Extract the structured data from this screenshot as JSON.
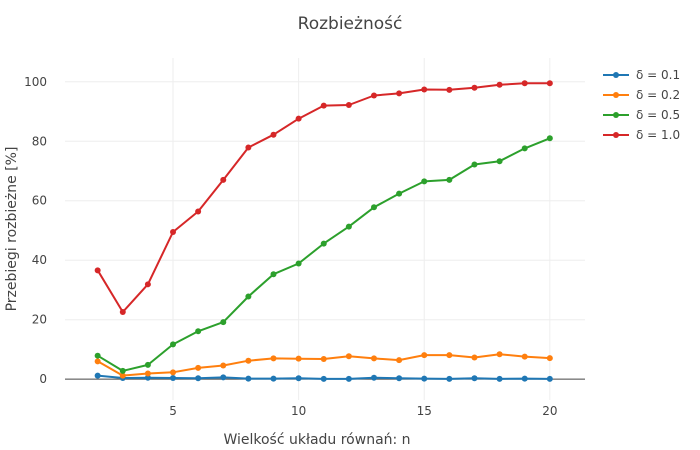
{
  "chart_data": {
    "type": "line",
    "title": "Rozbieżność",
    "xlabel": "Wielkość układu równań: n",
    "ylabel": "Przebiegi rozbieżne [%]",
    "xlim": [
      0.7,
      21.4
    ],
    "ylim": [
      -7,
      108
    ],
    "x_ticks": [
      5,
      10,
      15,
      20
    ],
    "y_ticks": [
      0,
      20,
      40,
      60,
      80,
      100
    ],
    "grid": true,
    "legend_position": "top-right",
    "x": [
      2,
      3,
      4,
      5,
      6,
      7,
      8,
      9,
      10,
      11,
      12,
      13,
      14,
      15,
      16,
      17,
      18,
      19,
      20
    ],
    "series": [
      {
        "name": "δ = 0.1",
        "color": "#1f77b4",
        "values": [
          1.2,
          0.4,
          0.5,
          0.4,
          0.3,
          0.6,
          0.2,
          0.2,
          0.3,
          0.1,
          0.1,
          0.5,
          0.3,
          0.2,
          0.1,
          0.3,
          0.1,
          0.2,
          0.1
        ]
      },
      {
        "name": "δ = 0.2",
        "color": "#ff7f0e",
        "values": [
          6.0,
          1.2,
          1.9,
          2.3,
          3.8,
          4.6,
          6.2,
          7.0,
          6.9,
          6.8,
          7.7,
          7.0,
          6.4,
          8.1,
          8.1,
          7.3,
          8.4,
          7.6,
          7.1
        ]
      },
      {
        "name": "δ = 0.5",
        "color": "#2ca02c",
        "values": [
          7.9,
          2.8,
          4.8,
          11.7,
          16.1,
          19.2,
          27.8,
          35.3,
          38.9,
          45.6,
          51.3,
          57.8,
          62.4,
          66.5,
          67.0,
          72.2,
          73.3,
          77.6,
          81.0
        ]
      },
      {
        "name": "δ = 1.0",
        "color": "#d62728",
        "values": [
          36.6,
          22.6,
          31.9,
          49.5,
          56.4,
          67.0,
          77.9,
          82.2,
          87.6,
          92.0,
          92.2,
          95.4,
          96.1,
          97.4,
          97.3,
          98.0,
          99.0,
          99.5,
          99.5
        ]
      }
    ]
  }
}
